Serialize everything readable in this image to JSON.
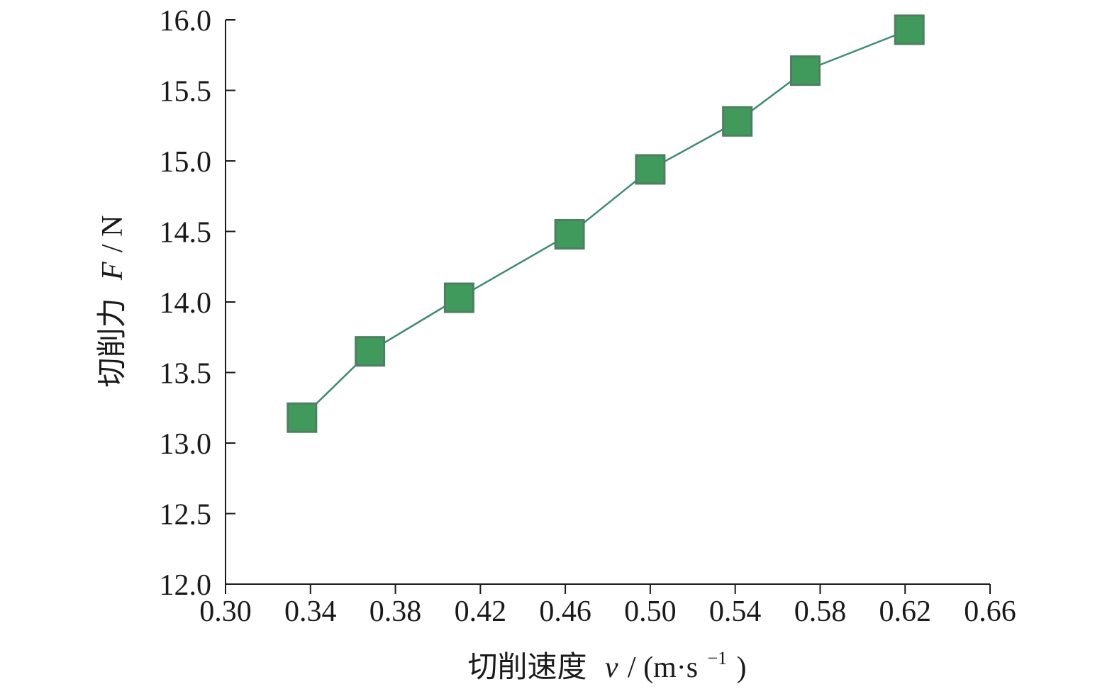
{
  "chart_data": {
    "type": "line",
    "xlabel": {
      "cjk": "切削速度",
      "symbol": "v",
      "unit_open": " / (m·s",
      "unit_sup": "−1",
      "unit_close": ")"
    },
    "ylabel": {
      "cjk": "切削力",
      "symbol": "F",
      "unit": " / N"
    },
    "xlim": [
      0.3,
      0.66
    ],
    "ylim": [
      12.0,
      16.0
    ],
    "x_ticks": [
      "0.30",
      "0.34",
      "0.38",
      "0.42",
      "0.46",
      "0.50",
      "0.54",
      "0.58",
      "0.62",
      "0.66"
    ],
    "y_ticks": [
      "12.0",
      "12.5",
      "13.0",
      "13.5",
      "14.0",
      "14.5",
      "15.0",
      "15.5",
      "16.0"
    ],
    "grid": false,
    "series": [
      {
        "x": [
          0.336,
          0.368,
          0.41,
          0.462,
          0.5,
          0.541,
          0.573,
          0.622
        ],
        "y": [
          13.18,
          13.65,
          14.03,
          14.48,
          14.94,
          15.28,
          15.64,
          15.93
        ],
        "marker": "square",
        "marker_color": "#3f9a5c",
        "marker_edge_color": "#4f7f62",
        "line_color": "#3e8c70"
      }
    ]
  }
}
